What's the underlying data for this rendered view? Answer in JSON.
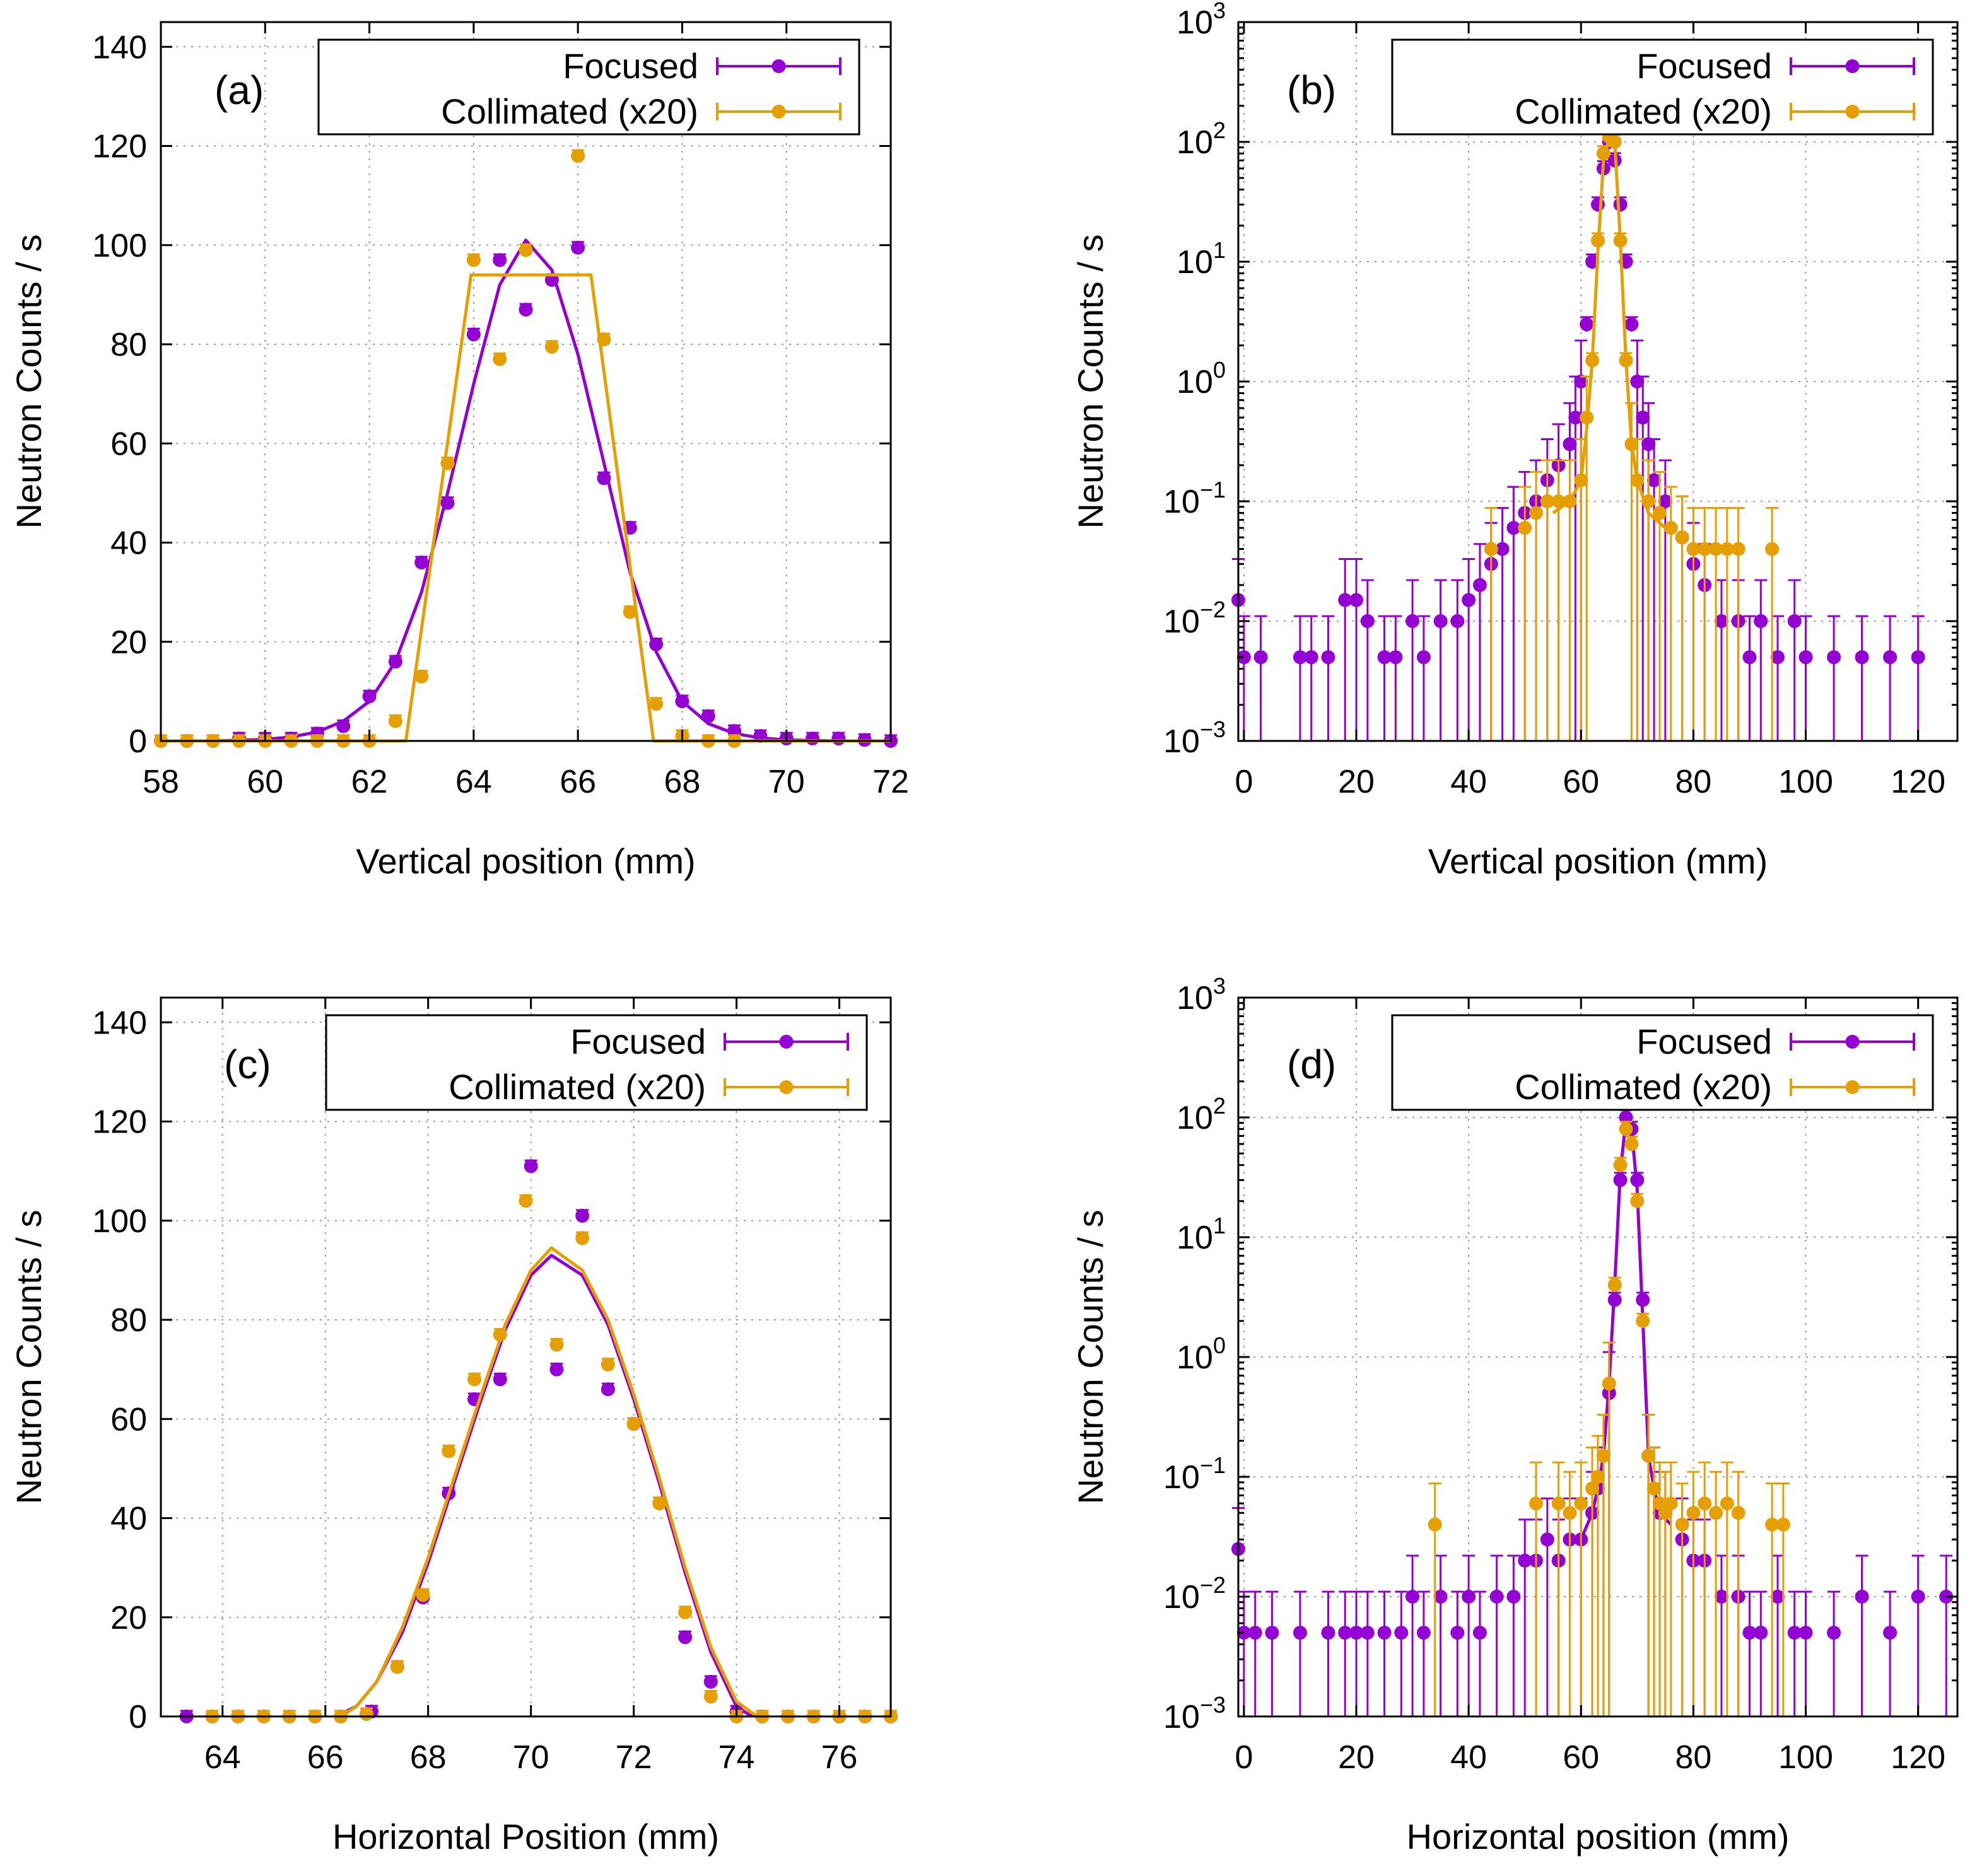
{
  "colors": {
    "focused": "#9400d3",
    "collimated": "#e69f00"
  },
  "chart_data": [
    {
      "id": "a",
      "type": "scatter",
      "panel_label": "(a)",
      "xlabel": "Vertical position (mm)",
      "ylabel": "Neutron Counts / s",
      "xlim": [
        58,
        72
      ],
      "ylim": [
        0,
        145
      ],
      "yscale": "linear",
      "x_ticks": [
        58,
        60,
        62,
        64,
        66,
        68,
        70,
        72
      ],
      "x_tick_labels": [
        "58",
        "60",
        "62",
        "64",
        "66",
        "68",
        "70",
        "72"
      ],
      "y_ticks": [
        0,
        20,
        40,
        60,
        80,
        100,
        120,
        140
      ],
      "y_tick_labels": [
        "0",
        "20",
        "40",
        "60",
        "80",
        "100",
        "120",
        "140"
      ],
      "grid": true,
      "legend_position": "top-right",
      "series": [
        {
          "name": "Focused",
          "color_key": "focused",
          "x": [
            58.0,
            58.5,
            59.0,
            59.5,
            60.0,
            60.5,
            61.0,
            61.5,
            62.0,
            62.5,
            63.0,
            63.5,
            64.0,
            64.5,
            65.0,
            65.5,
            66.0,
            66.5,
            67.0,
            67.5,
            68.0,
            68.5,
            69.0,
            69.5,
            70.0,
            70.5,
            71.0,
            71.5,
            72.0
          ],
          "y": [
            0,
            0,
            0,
            0.5,
            0.5,
            0.5,
            1.5,
            3,
            9,
            16,
            36,
            48,
            82,
            97,
            87,
            93,
            99.5,
            53,
            43,
            19.5,
            8,
            5,
            2,
            1,
            0.5,
            0.5,
            0.5,
            0.2,
            0
          ],
          "fit": {
            "x": [
              58,
              59,
              60,
              60.5,
              61,
              61.5,
              62,
              62.5,
              63,
              63.5,
              64,
              64.5,
              65,
              65.5,
              66,
              66.5,
              67,
              67.5,
              68,
              68.5,
              69,
              69.5,
              70,
              71,
              72
            ],
            "y": [
              0,
              0,
              0.3,
              0.8,
              1.8,
              4,
              8,
              16,
              30,
              50,
              72,
              92,
              101,
              95,
              78,
              56,
              34,
              18,
              8,
              3.5,
              1.5,
              0.6,
              0.2,
              0,
              0
            ]
          }
        },
        {
          "name": "Collimated (x20)",
          "color_key": "collimated",
          "x": [
            58.0,
            58.5,
            59.0,
            59.5,
            60.0,
            60.5,
            61.0,
            61.5,
            62.0,
            62.5,
            63.0,
            63.5,
            64.0,
            64.5,
            65.0,
            65.5,
            66.0,
            66.5,
            67.0,
            67.5,
            68.0,
            68.5,
            69.0
          ],
          "y": [
            0,
            0,
            0,
            0,
            0,
            0,
            0,
            0,
            0,
            4,
            13,
            56,
            97,
            77,
            99,
            79.5,
            118,
            81,
            26,
            7.5,
            1,
            0,
            0
          ],
          "fit": {
            "x": [
              58,
              62.7,
              63.95,
              66.25,
              67.45,
              72
            ],
            "y": [
              0,
              0,
              94,
              94,
              0,
              0
            ]
          }
        }
      ]
    },
    {
      "id": "b",
      "type": "scatter",
      "panel_label": "(b)",
      "xlabel": "Vertical position (mm)",
      "ylabel": "Neutron Counts / s",
      "xlim": [
        -1,
        127
      ],
      "ylim": [
        0.001,
        1000
      ],
      "yscale": "log",
      "x_ticks": [
        0,
        20,
        40,
        60,
        80,
        100,
        120
      ],
      "x_tick_labels": [
        "0",
        "20",
        "40",
        "60",
        "80",
        "100",
        "120"
      ],
      "y_ticks": [
        0.001,
        0.01,
        0.1,
        1,
        10,
        100,
        1000
      ],
      "y_tick_labels": [
        [
          "10",
          "−3"
        ],
        [
          "10",
          "−2"
        ],
        [
          "10",
          "−1"
        ],
        [
          "10",
          "0"
        ],
        [
          "10",
          "1"
        ],
        [
          "10",
          "2"
        ],
        [
          "10",
          "3"
        ]
      ],
      "grid": true,
      "legend_position": "top-right",
      "series": [
        {
          "name": "Focused",
          "color_key": "focused",
          "x": [
            -1,
            0,
            3,
            10,
            12,
            15,
            18,
            20,
            22,
            25,
            27,
            30,
            32,
            35,
            38,
            40,
            42,
            44,
            46,
            48,
            50,
            52,
            54,
            56,
            58,
            59,
            60,
            61,
            62,
            63,
            64,
            65,
            66,
            67,
            68,
            69,
            70,
            71,
            72,
            73,
            75,
            78,
            80,
            82,
            85,
            88,
            90,
            92,
            95,
            98,
            100,
            105,
            110,
            115,
            120
          ],
          "y": [
            0.015,
            0.005,
            0.005,
            0.005,
            0.005,
            0.005,
            0.015,
            0.015,
            0.01,
            0.005,
            0.005,
            0.01,
            0.005,
            0.01,
            0.01,
            0.015,
            0.02,
            0.03,
            0.04,
            0.06,
            0.08,
            0.1,
            0.15,
            0.2,
            0.3,
            0.5,
            1,
            3,
            10,
            30,
            60,
            100,
            70,
            30,
            10,
            3,
            1,
            0.5,
            0.3,
            0.15,
            0.1,
            0.05,
            0.03,
            0.02,
            0.01,
            0.01,
            0.005,
            0.01,
            0.005,
            0.01,
            0.005,
            0.005,
            0.005,
            0.005,
            0.005
          ]
        },
        {
          "name": "Collimated (x20)",
          "color_key": "collimated",
          "x": [
            44,
            50,
            52,
            54,
            56,
            58,
            60,
            61,
            62,
            63,
            64,
            65,
            66,
            67,
            68,
            69,
            70,
            72,
            74,
            76,
            78,
            80,
            82,
            84,
            86,
            88,
            94
          ],
          "y": [
            0.04,
            0.06,
            0.08,
            0.1,
            0.1,
            0.1,
            0.15,
            0.5,
            1.5,
            15,
            80,
            110,
            100,
            15,
            1.5,
            0.3,
            0.15,
            0.1,
            0.08,
            0.06,
            0.05,
            0.04,
            0.04,
            0.04,
            0.04,
            0.04,
            0.04
          ],
          "fit": {
            "x": [
              55,
              58,
              60,
              61,
              62,
              63,
              64,
              65,
              66,
              67,
              68,
              69,
              70,
              72,
              75
            ],
            "y": [
              0.08,
              0.1,
              0.15,
              0.4,
              1.5,
              12,
              70,
              110,
              100,
              15,
              1.5,
              0.3,
              0.15,
              0.08,
              0.06
            ]
          }
        }
      ]
    },
    {
      "id": "c",
      "type": "scatter",
      "panel_label": "(c)",
      "xlabel": "Horizontal Position (mm)",
      "ylabel": "Neutron Counts / s",
      "xlim": [
        62.8,
        77
      ],
      "ylim": [
        0,
        145
      ],
      "yscale": "linear",
      "x_ticks": [
        64,
        66,
        68,
        70,
        72,
        74,
        76
      ],
      "x_tick_labels": [
        "64",
        "66",
        "68",
        "70",
        "72",
        "74",
        "76"
      ],
      "y_ticks": [
        0,
        20,
        40,
        60,
        80,
        100,
        120,
        140
      ],
      "y_tick_labels": [
        "0",
        "20",
        "40",
        "60",
        "80",
        "100",
        "120",
        "140"
      ],
      "grid": true,
      "legend_position": "top-right",
      "series": [
        {
          "name": "Focused",
          "color_key": "focused",
          "x": [
            63.3,
            63.8,
            64.3,
            64.8,
            65.3,
            65.8,
            66.3,
            66.9,
            67.4,
            67.9,
            68.4,
            68.9,
            69.4,
            70.0,
            70.5,
            71.0,
            71.5,
            72.0,
            72.5,
            73.0,
            73.5,
            74.0,
            74.5,
            75.0,
            75.5,
            76.0,
            76.5,
            77.0
          ],
          "y": [
            0,
            0,
            0,
            0,
            0,
            0,
            0,
            1,
            10,
            24,
            45,
            64,
            68,
            111,
            70,
            101,
            66,
            59,
            43,
            16,
            7,
            1,
            0,
            0,
            0,
            0,
            0,
            0
          ],
          "fit": {
            "x": [
              66.2,
              66.6,
              67,
              67.5,
              68,
              68.5,
              69,
              69.5,
              70,
              70.4,
              71,
              71.5,
              72,
              72.5,
              73,
              73.5,
              74,
              74.3
            ],
            "y": [
              0,
              2,
              7,
              17,
              31,
              47,
              63,
              78,
              89,
              93,
              89,
              79,
              64,
              47,
              29,
              13,
              2,
              0
            ]
          }
        },
        {
          "name": "Collimated (x20)",
          "color_key": "collimated",
          "x": [
            63.8,
            64.3,
            64.8,
            65.3,
            65.8,
            66.3,
            66.8,
            67.4,
            67.9,
            68.4,
            68.9,
            69.4,
            69.9,
            70.5,
            71.0,
            71.5,
            72.0,
            72.5,
            73.0,
            73.5,
            74.0,
            74.5,
            75.0,
            75.5,
            76.0,
            76.5,
            77.0
          ],
          "y": [
            0,
            0,
            0,
            0,
            0,
            0,
            0.5,
            10,
            24.5,
            53.5,
            68,
            77,
            104,
            75,
            96.5,
            71,
            59,
            43,
            21,
            4,
            0,
            0,
            0,
            0,
            0,
            0,
            0
          ],
          "fit": {
            "x": [
              66.3,
              66.6,
              67,
              67.5,
              68,
              68.5,
              69,
              69.5,
              70,
              70.4,
              71,
              71.5,
              72,
              72.5,
              73,
              73.5,
              74,
              74.4
            ],
            "y": [
              0,
              2,
              7,
              18,
              32,
              48,
              64,
              79,
              90,
              94.5,
              90,
              80,
              65,
              48,
              30,
              14,
              3,
              0
            ]
          }
        }
      ]
    },
    {
      "id": "d",
      "type": "scatter",
      "panel_label": "(d)",
      "xlabel": "Horizontal position (mm)",
      "ylabel": "Neutron Counts / s",
      "xlim": [
        -1,
        127
      ],
      "ylim": [
        0.001,
        1000
      ],
      "yscale": "log",
      "x_ticks": [
        0,
        20,
        40,
        60,
        80,
        100,
        120
      ],
      "x_tick_labels": [
        "0",
        "20",
        "40",
        "60",
        "80",
        "100",
        "120"
      ],
      "y_ticks": [
        0.001,
        0.01,
        0.1,
        1,
        10,
        100,
        1000
      ],
      "y_tick_labels": [
        [
          "10",
          "−3"
        ],
        [
          "10",
          "−2"
        ],
        [
          "10",
          "−1"
        ],
        [
          "10",
          "0"
        ],
        [
          "10",
          "1"
        ],
        [
          "10",
          "2"
        ],
        [
          "10",
          "3"
        ]
      ],
      "grid": true,
      "legend_position": "top-right",
      "series": [
        {
          "name": "Focused",
          "color_key": "focused",
          "x": [
            -1,
            0,
            2,
            5,
            10,
            15,
            18,
            20,
            22,
            25,
            28,
            30,
            32,
            35,
            38,
            40,
            42,
            45,
            48,
            50,
            52,
            54,
            56,
            58,
            60,
            62,
            63,
            64,
            65,
            66,
            67,
            68,
            69,
            70,
            71,
            72,
            73,
            74,
            75,
            78,
            80,
            82,
            85,
            88,
            90,
            92,
            95,
            98,
            100,
            105,
            110,
            115,
            120,
            125
          ],
          "y": [
            0.025,
            0.005,
            0.005,
            0.005,
            0.005,
            0.005,
            0.005,
            0.005,
            0.005,
            0.005,
            0.005,
            0.01,
            0.005,
            0.01,
            0.005,
            0.01,
            0.005,
            0.01,
            0.01,
            0.02,
            0.02,
            0.03,
            0.02,
            0.03,
            0.03,
            0.05,
            0.08,
            0.15,
            0.5,
            3,
            30,
            100,
            80,
            30,
            3,
            0.15,
            0.08,
            0.05,
            0.05,
            0.03,
            0.02,
            0.02,
            0.01,
            0.01,
            0.005,
            0.005,
            0.01,
            0.005,
            0.005,
            0.005,
            0.01,
            0.005,
            0.01,
            0.01
          ],
          "fit": {
            "x": [
              60,
              62,
              63,
              64,
              65,
              66,
              67,
              68,
              69,
              70,
              71,
              72,
              73,
              74,
              76
            ],
            "y": [
              0.03,
              0.05,
              0.08,
              0.15,
              0.6,
              4,
              35,
              95,
              80,
              25,
              2,
              0.15,
              0.08,
              0.05,
              0.04
            ]
          }
        },
        {
          "name": "Collimated (x20)",
          "color_key": "collimated",
          "x": [
            34,
            52,
            56,
            58,
            60,
            62,
            63,
            64,
            65,
            66,
            67,
            68,
            69,
            70,
            71,
            72,
            73,
            74,
            75,
            76,
            78,
            80,
            82,
            84,
            86,
            88,
            94,
            96
          ],
          "y": [
            0.04,
            0.06,
            0.06,
            0.05,
            0.06,
            0.08,
            0.1,
            0.15,
            0.6,
            4,
            40,
            80,
            60,
            20,
            2,
            0.15,
            0.08,
            0.06,
            0.05,
            0.06,
            0.04,
            0.05,
            0.06,
            0.05,
            0.06,
            0.05,
            0.04,
            0.04
          ]
        }
      ]
    }
  ]
}
